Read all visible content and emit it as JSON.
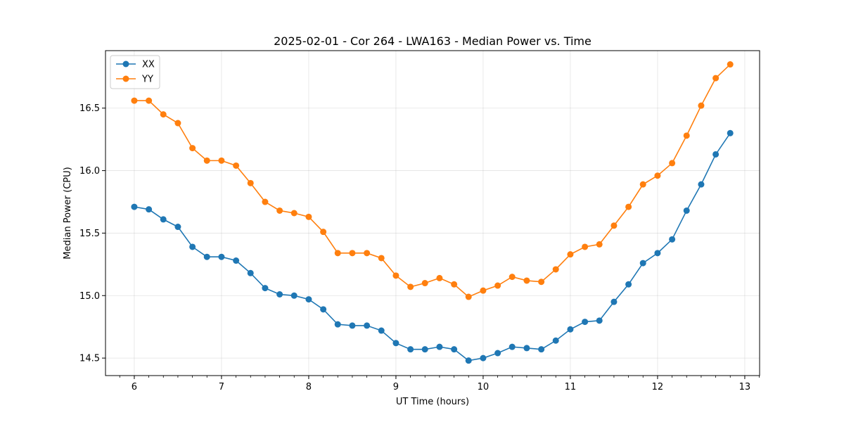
{
  "chart_data": {
    "type": "line",
    "title": "2025-02-01 - Cor 264 - LWA163 - Median Power vs. Time",
    "xlabel": "UT Time (hours)",
    "ylabel": "Median Power (CPU)",
    "xlim": [
      5.67,
      13.17
    ],
    "ylim": [
      14.36,
      16.96
    ],
    "xticks": [
      6,
      7,
      8,
      9,
      10,
      11,
      12,
      13
    ],
    "yticks": [
      14.5,
      15.0,
      15.5,
      16.0,
      16.5
    ],
    "ytick_labels": [
      "14.5",
      "15.0",
      "15.5",
      "16.0",
      "16.5"
    ],
    "grid": true,
    "legend_position": "top-left",
    "x": [
      6.0,
      6.167,
      6.333,
      6.5,
      6.667,
      6.833,
      7.0,
      7.167,
      7.333,
      7.5,
      7.667,
      7.833,
      8.0,
      8.167,
      8.333,
      8.5,
      8.667,
      8.833,
      9.0,
      9.167,
      9.333,
      9.5,
      9.667,
      9.833,
      10.0,
      10.167,
      10.333,
      10.5,
      10.667,
      10.833,
      11.0,
      11.167,
      11.333,
      11.5,
      11.667,
      11.833,
      12.0,
      12.167,
      12.333,
      12.5,
      12.667,
      12.833
    ],
    "series": [
      {
        "name": "XX",
        "color": "#1f77b4",
        "values": [
          15.71,
          15.69,
          15.61,
          15.55,
          15.39,
          15.31,
          15.31,
          15.28,
          15.18,
          15.06,
          15.01,
          15.0,
          14.97,
          14.89,
          14.77,
          14.76,
          14.76,
          14.72,
          14.62,
          14.57,
          14.57,
          14.59,
          14.57,
          14.48,
          14.5,
          14.54,
          14.59,
          14.58,
          14.57,
          14.64,
          14.73,
          14.79,
          14.8,
          14.95,
          15.09,
          15.26,
          15.34,
          15.45,
          15.68,
          15.89,
          16.13,
          16.3
        ]
      },
      {
        "name": "YY",
        "color": "#ff7f0e",
        "values": [
          16.56,
          16.56,
          16.45,
          16.38,
          16.18,
          16.08,
          16.08,
          16.04,
          15.9,
          15.75,
          15.68,
          15.66,
          15.63,
          15.51,
          15.34,
          15.34,
          15.34,
          15.3,
          15.16,
          15.07,
          15.1,
          15.14,
          15.09,
          14.99,
          15.04,
          15.08,
          15.15,
          15.12,
          15.11,
          15.21,
          15.33,
          15.39,
          15.41,
          15.56,
          15.71,
          15.89,
          15.96,
          16.06,
          16.28,
          16.52,
          16.74,
          16.85
        ]
      }
    ]
  }
}
